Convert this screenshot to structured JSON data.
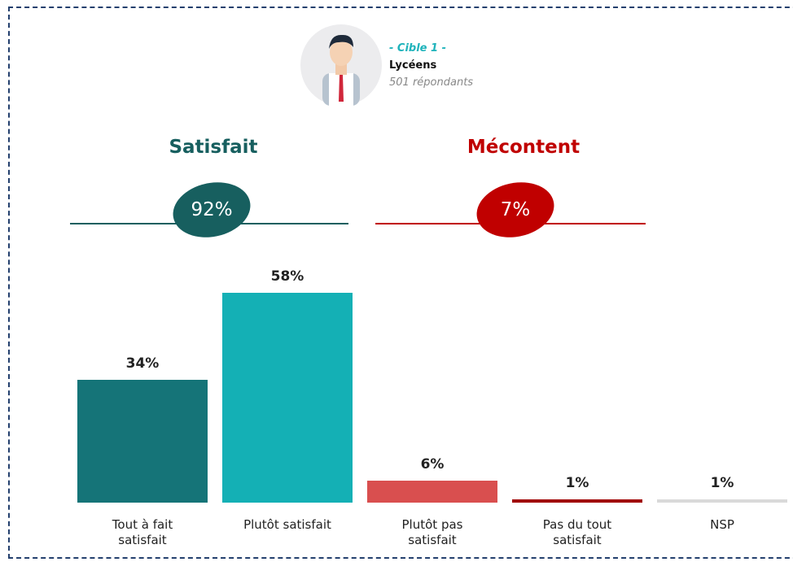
{
  "header": {
    "target": "- Cible 1 -",
    "group": "Lycéens",
    "respondents": "501 répondants"
  },
  "summary": [
    {
      "name": "Satisfait",
      "value": 92,
      "label": "92%",
      "color": "#175f5f"
    },
    {
      "name": "Mécontent",
      "value": 7,
      "label": "7%",
      "color": "#c00000"
    }
  ],
  "chart_data": {
    "type": "bar",
    "categories": [
      "Tout à fait satisfait",
      "Plutôt satisfait",
      "Plutôt pas satisfait",
      "Pas du tout satisfait",
      "NSP"
    ],
    "values": [
      34,
      58,
      6,
      1,
      1
    ],
    "value_labels": [
      "34%",
      "58%",
      "6%",
      "1%",
      "1%"
    ],
    "colors": [
      "#157478",
      "#14b0b5",
      "#d94f4f",
      "#a00000",
      "#d9d9d9"
    ]
  }
}
